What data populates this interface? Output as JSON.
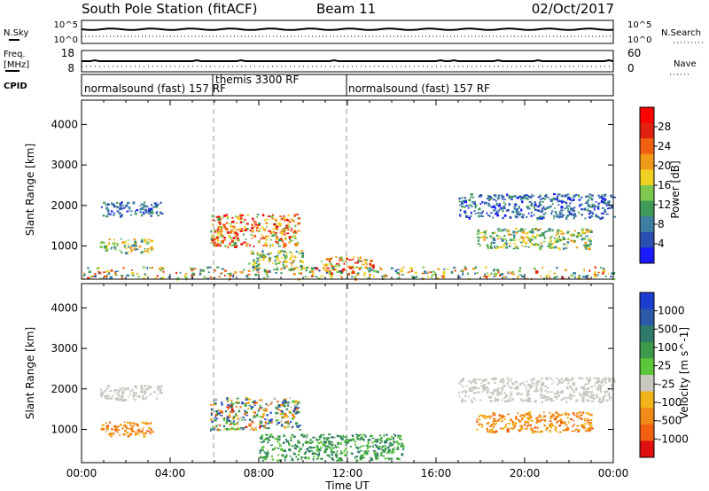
{
  "header": {
    "title": "South Pole Station (fitACF)",
    "beam": "Beam 11",
    "date": "02/Oct/2017"
  },
  "top_panels": {
    "nsky_label": "N.Sky",
    "nsky_ticks": [
      "10^5",
      "10^0"
    ],
    "nsearch_label": "N.Search",
    "nsearch_ticks": [
      "10^5",
      "10^0"
    ],
    "freq_label": "Freq.",
    "freq_unit": "[MHz]",
    "freq_ticks": [
      "18",
      "8"
    ],
    "nave_label": "Nave",
    "nave_ticks": [
      "60",
      "0"
    ],
    "cpid_label": "CPID",
    "cpid_segments": [
      {
        "name": "normalsound (fast) 157 RF",
        "start_hour": 0,
        "end_hour": 6.1
      },
      {
        "name": "themis 3300 RF",
        "start_hour": 6.1,
        "end_hour": 12.0
      },
      {
        "name": "normalsound (fast) 157 RF",
        "start_hour": 12.0,
        "end_hour": 24
      }
    ]
  },
  "axes": {
    "ylabel": "Slant Range [km]",
    "xlabel": "Time UT",
    "x_ticks": [
      "00:00",
      "04:00",
      "08:00",
      "12:00",
      "16:00",
      "20:00",
      "00:00"
    ],
    "y_ticks": [
      "1000",
      "2000",
      "3000",
      "4000"
    ]
  },
  "chart_data": [
    {
      "type": "heatmap",
      "panel": "power",
      "xlabel": "",
      "ylabel": "Slant Range [km]",
      "xlim": [
        0,
        24
      ],
      "ylim": [
        180,
        4600
      ],
      "colorbar": {
        "label": "Power [dB]",
        "ticks": [
          "4",
          "8",
          "12",
          "16",
          "20",
          "24",
          "28"
        ],
        "colors": [
          "#1a1aff",
          "#2a4fb0",
          "#3e7fa0",
          "#3f9a5a",
          "#7ec850",
          "#f0d020",
          "#f09a1a",
          "#f06010",
          "#e02010",
          "#ff0000"
        ]
      },
      "regions": [
        {
          "x0": 0.8,
          "x1": 3.6,
          "r0": 1750,
          "r1": 2100,
          "power": "low"
        },
        {
          "x0": 0.8,
          "x1": 3.2,
          "r0": 850,
          "r1": 1200,
          "power": "moderate"
        },
        {
          "x0": 5.8,
          "x1": 9.8,
          "r0": 1000,
          "r1": 1800,
          "power": "high"
        },
        {
          "x0": 7.5,
          "x1": 10.0,
          "r0": 400,
          "r1": 900,
          "power": "moderate"
        },
        {
          "x0": 10.8,
          "x1": 13.2,
          "r0": 350,
          "r1": 750,
          "power": "high"
        },
        {
          "x0": 17.0,
          "x1": 24.0,
          "r0": 1700,
          "r1": 2300,
          "power": "low"
        },
        {
          "x0": 17.8,
          "x1": 23.0,
          "r0": 950,
          "r1": 1450,
          "power": "moderate"
        },
        {
          "x0": 0.0,
          "x1": 24.0,
          "r0": 200,
          "r1": 500,
          "power": "scattered"
        }
      ]
    },
    {
      "type": "heatmap",
      "panel": "velocity",
      "xlabel": "Time UT",
      "ylabel": "Slant Range [km]",
      "xlim": [
        0,
        24
      ],
      "ylim": [
        180,
        4600
      ],
      "colorbar": {
        "label": "Velocity [m s^-1]",
        "ticks": [
          "1000",
          "500",
          "100",
          "25",
          "-25",
          "-100",
          "-500",
          "-1000"
        ],
        "colors": [
          "#1a3fd0",
          "#2a5aa8",
          "#2f7a6a",
          "#3c9a4a",
          "#5ac83a",
          "#c8c8c0",
          "#f0b418",
          "#f08a18",
          "#f06010",
          "#e01010"
        ]
      },
      "regions": [
        {
          "x0": 0.8,
          "x1": 3.6,
          "r0": 1750,
          "r1": 2100,
          "velocity": "near zero"
        },
        {
          "x0": 0.8,
          "x1": 3.2,
          "r0": 850,
          "r1": 1200,
          "velocity": "negative"
        },
        {
          "x0": 5.8,
          "x1": 9.8,
          "r0": 1000,
          "r1": 1800,
          "velocity": "mixed"
        },
        {
          "x0": 8.0,
          "x1": 14.5,
          "r0": 250,
          "r1": 900,
          "velocity": "positive"
        },
        {
          "x0": 17.0,
          "x1": 24.0,
          "r0": 1700,
          "r1": 2300,
          "velocity": "near zero"
        },
        {
          "x0": 17.8,
          "x1": 23.0,
          "r0": 950,
          "r1": 1450,
          "velocity": "negative"
        }
      ]
    }
  ]
}
